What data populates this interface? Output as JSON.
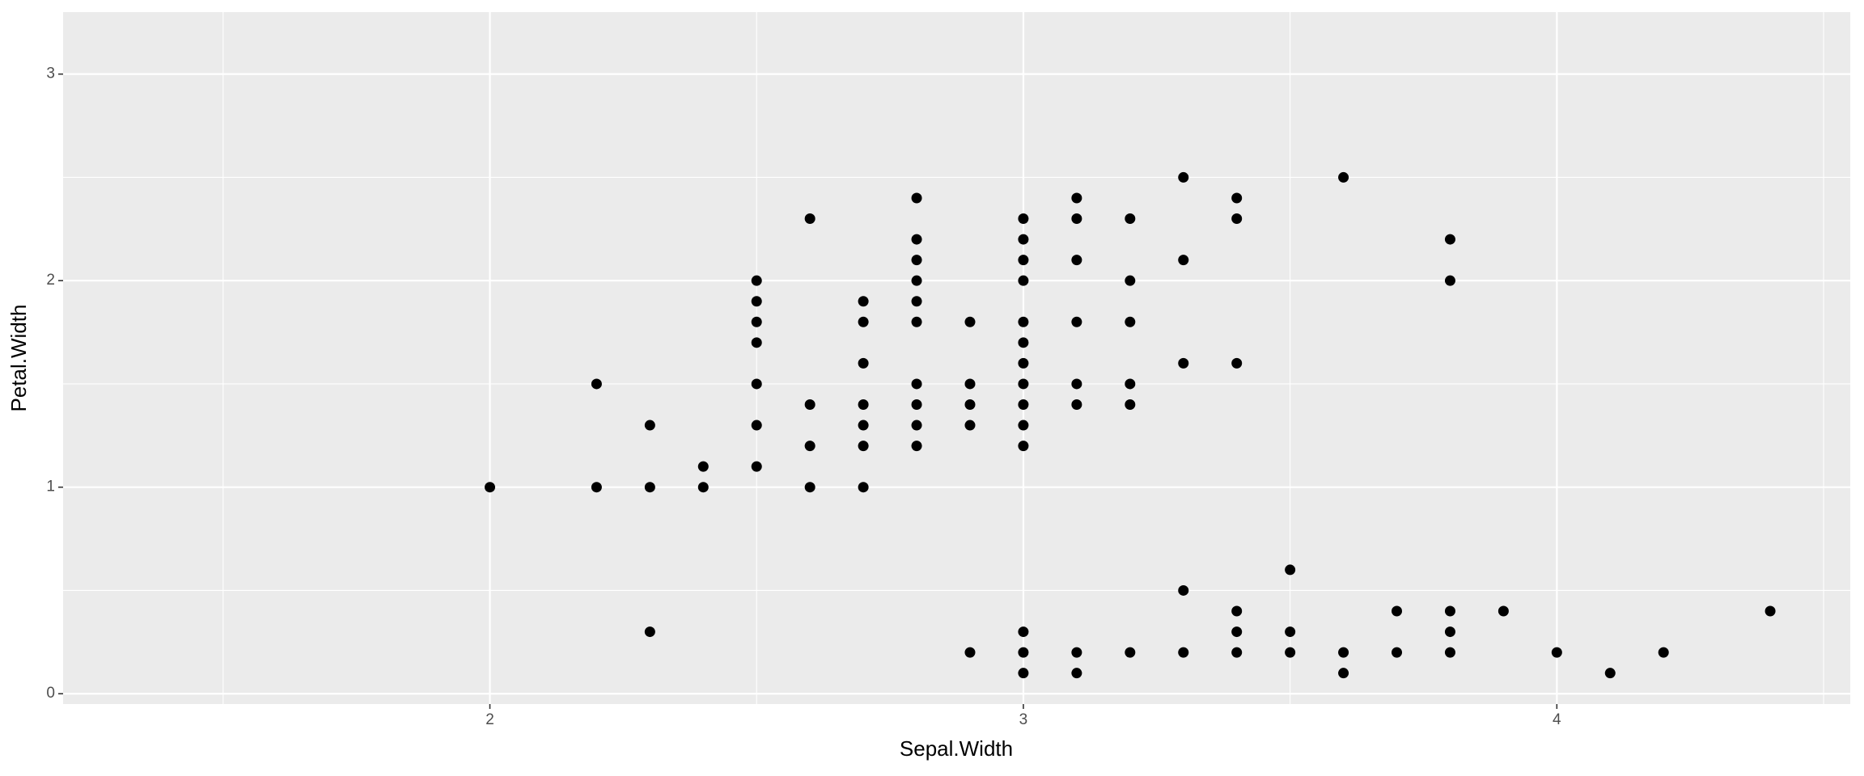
{
  "chart_data": {
    "type": "scatter",
    "x_label": "Sepal.Width",
    "y_label": "Petal.Width",
    "x": [
      2.0,
      2.2,
      2.2,
      2.3,
      2.3,
      2.3,
      2.4,
      2.4,
      2.5,
      2.5,
      2.5,
      2.5,
      2.5,
      2.5,
      2.5,
      2.6,
      2.6,
      2.6,
      2.6,
      2.7,
      2.7,
      2.7,
      2.7,
      2.7,
      2.7,
      2.7,
      2.8,
      2.8,
      2.8,
      2.8,
      2.8,
      2.8,
      2.8,
      2.8,
      2.8,
      2.8,
      2.9,
      2.9,
      2.9,
      2.9,
      2.9,
      3.0,
      3.0,
      3.0,
      3.0,
      3.0,
      3.0,
      3.0,
      3.0,
      3.0,
      3.0,
      3.0,
      3.0,
      3.0,
      3.0,
      3.1,
      3.1,
      3.1,
      3.1,
      3.1,
      3.1,
      3.1,
      3.1,
      3.2,
      3.2,
      3.2,
      3.2,
      3.2,
      3.2,
      3.3,
      3.3,
      3.3,
      3.3,
      3.3,
      3.4,
      3.4,
      3.4,
      3.4,
      3.4,
      3.4,
      3.5,
      3.5,
      3.5,
      3.6,
      3.6,
      3.6,
      3.7,
      3.7,
      3.8,
      3.8,
      3.8,
      3.8,
      3.8,
      3.9,
      4.0,
      4.1,
      4.2,
      4.4
    ],
    "values": [
      1.0,
      1.5,
      1.0,
      1.3,
      1.0,
      0.3,
      1.1,
      1.0,
      2.0,
      1.9,
      1.8,
      1.7,
      1.5,
      1.3,
      1.1,
      2.3,
      1.4,
      1.2,
      1.0,
      1.9,
      1.8,
      1.6,
      1.4,
      1.3,
      1.2,
      1.0,
      2.4,
      2.2,
      2.1,
      2.0,
      1.9,
      1.8,
      1.5,
      1.4,
      1.3,
      1.2,
      1.8,
      1.5,
      1.4,
      1.3,
      0.2,
      2.3,
      2.2,
      2.1,
      2.0,
      1.8,
      1.7,
      1.6,
      1.5,
      1.4,
      1.3,
      1.2,
      0.3,
      0.2,
      0.1,
      2.4,
      2.3,
      2.1,
      1.8,
      1.5,
      1.4,
      0.2,
      0.1,
      2.3,
      2.0,
      1.8,
      1.5,
      1.4,
      0.2,
      2.5,
      2.1,
      1.6,
      0.5,
      0.2,
      2.4,
      2.3,
      1.6,
      0.4,
      0.3,
      0.2,
      0.6,
      0.3,
      0.2,
      2.5,
      0.2,
      0.1,
      0.4,
      0.2,
      2.2,
      2.0,
      0.4,
      0.3,
      0.2,
      0.4,
      0.2,
      0.1,
      0.2,
      0.4
    ],
    "color": "#000000",
    "xlim": [
      1.2,
      4.55
    ],
    "ylim": [
      -0.05,
      3.3
    ],
    "xticks": [
      2,
      3,
      4
    ],
    "yticks": [
      0,
      1,
      2,
      3
    ],
    "grid": true
  }
}
